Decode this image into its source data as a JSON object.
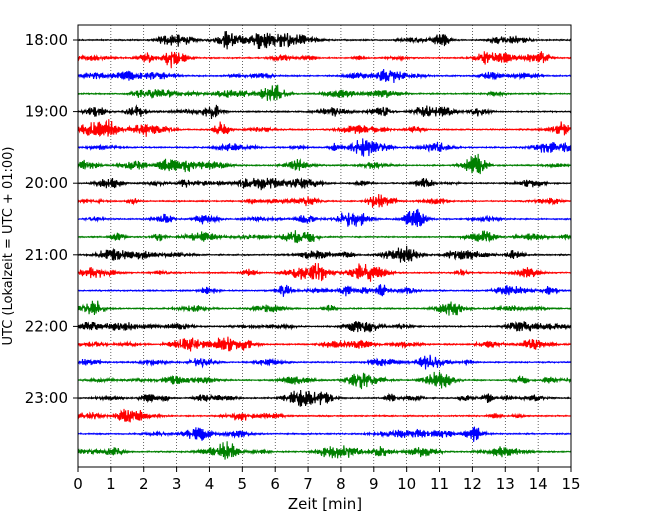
{
  "chart_data": {
    "type": "line",
    "title": "",
    "xlabel": "Zeit  [min]",
    "ylabel": "UTC (Lokalzeit = UTC + 01:00)",
    "xlim": [
      0,
      15
    ],
    "x_ticks": [
      0,
      1,
      2,
      3,
      4,
      5,
      6,
      7,
      8,
      9,
      10,
      11,
      12,
      13,
      14,
      15
    ],
    "y_tick_labels": [
      "18:00",
      "19:00",
      "20:00",
      "21:00",
      "22:00",
      "23:00"
    ],
    "y_tick_rows": [
      0,
      4,
      8,
      12,
      16,
      20
    ],
    "trace_colors": [
      "#000000",
      "#ff0000",
      "#0000ff",
      "#008000"
    ],
    "trace_count": 24,
    "trace_interval_minutes": 15,
    "grid": "vertical dotted lines at each minute",
    "legend": "none"
  }
}
